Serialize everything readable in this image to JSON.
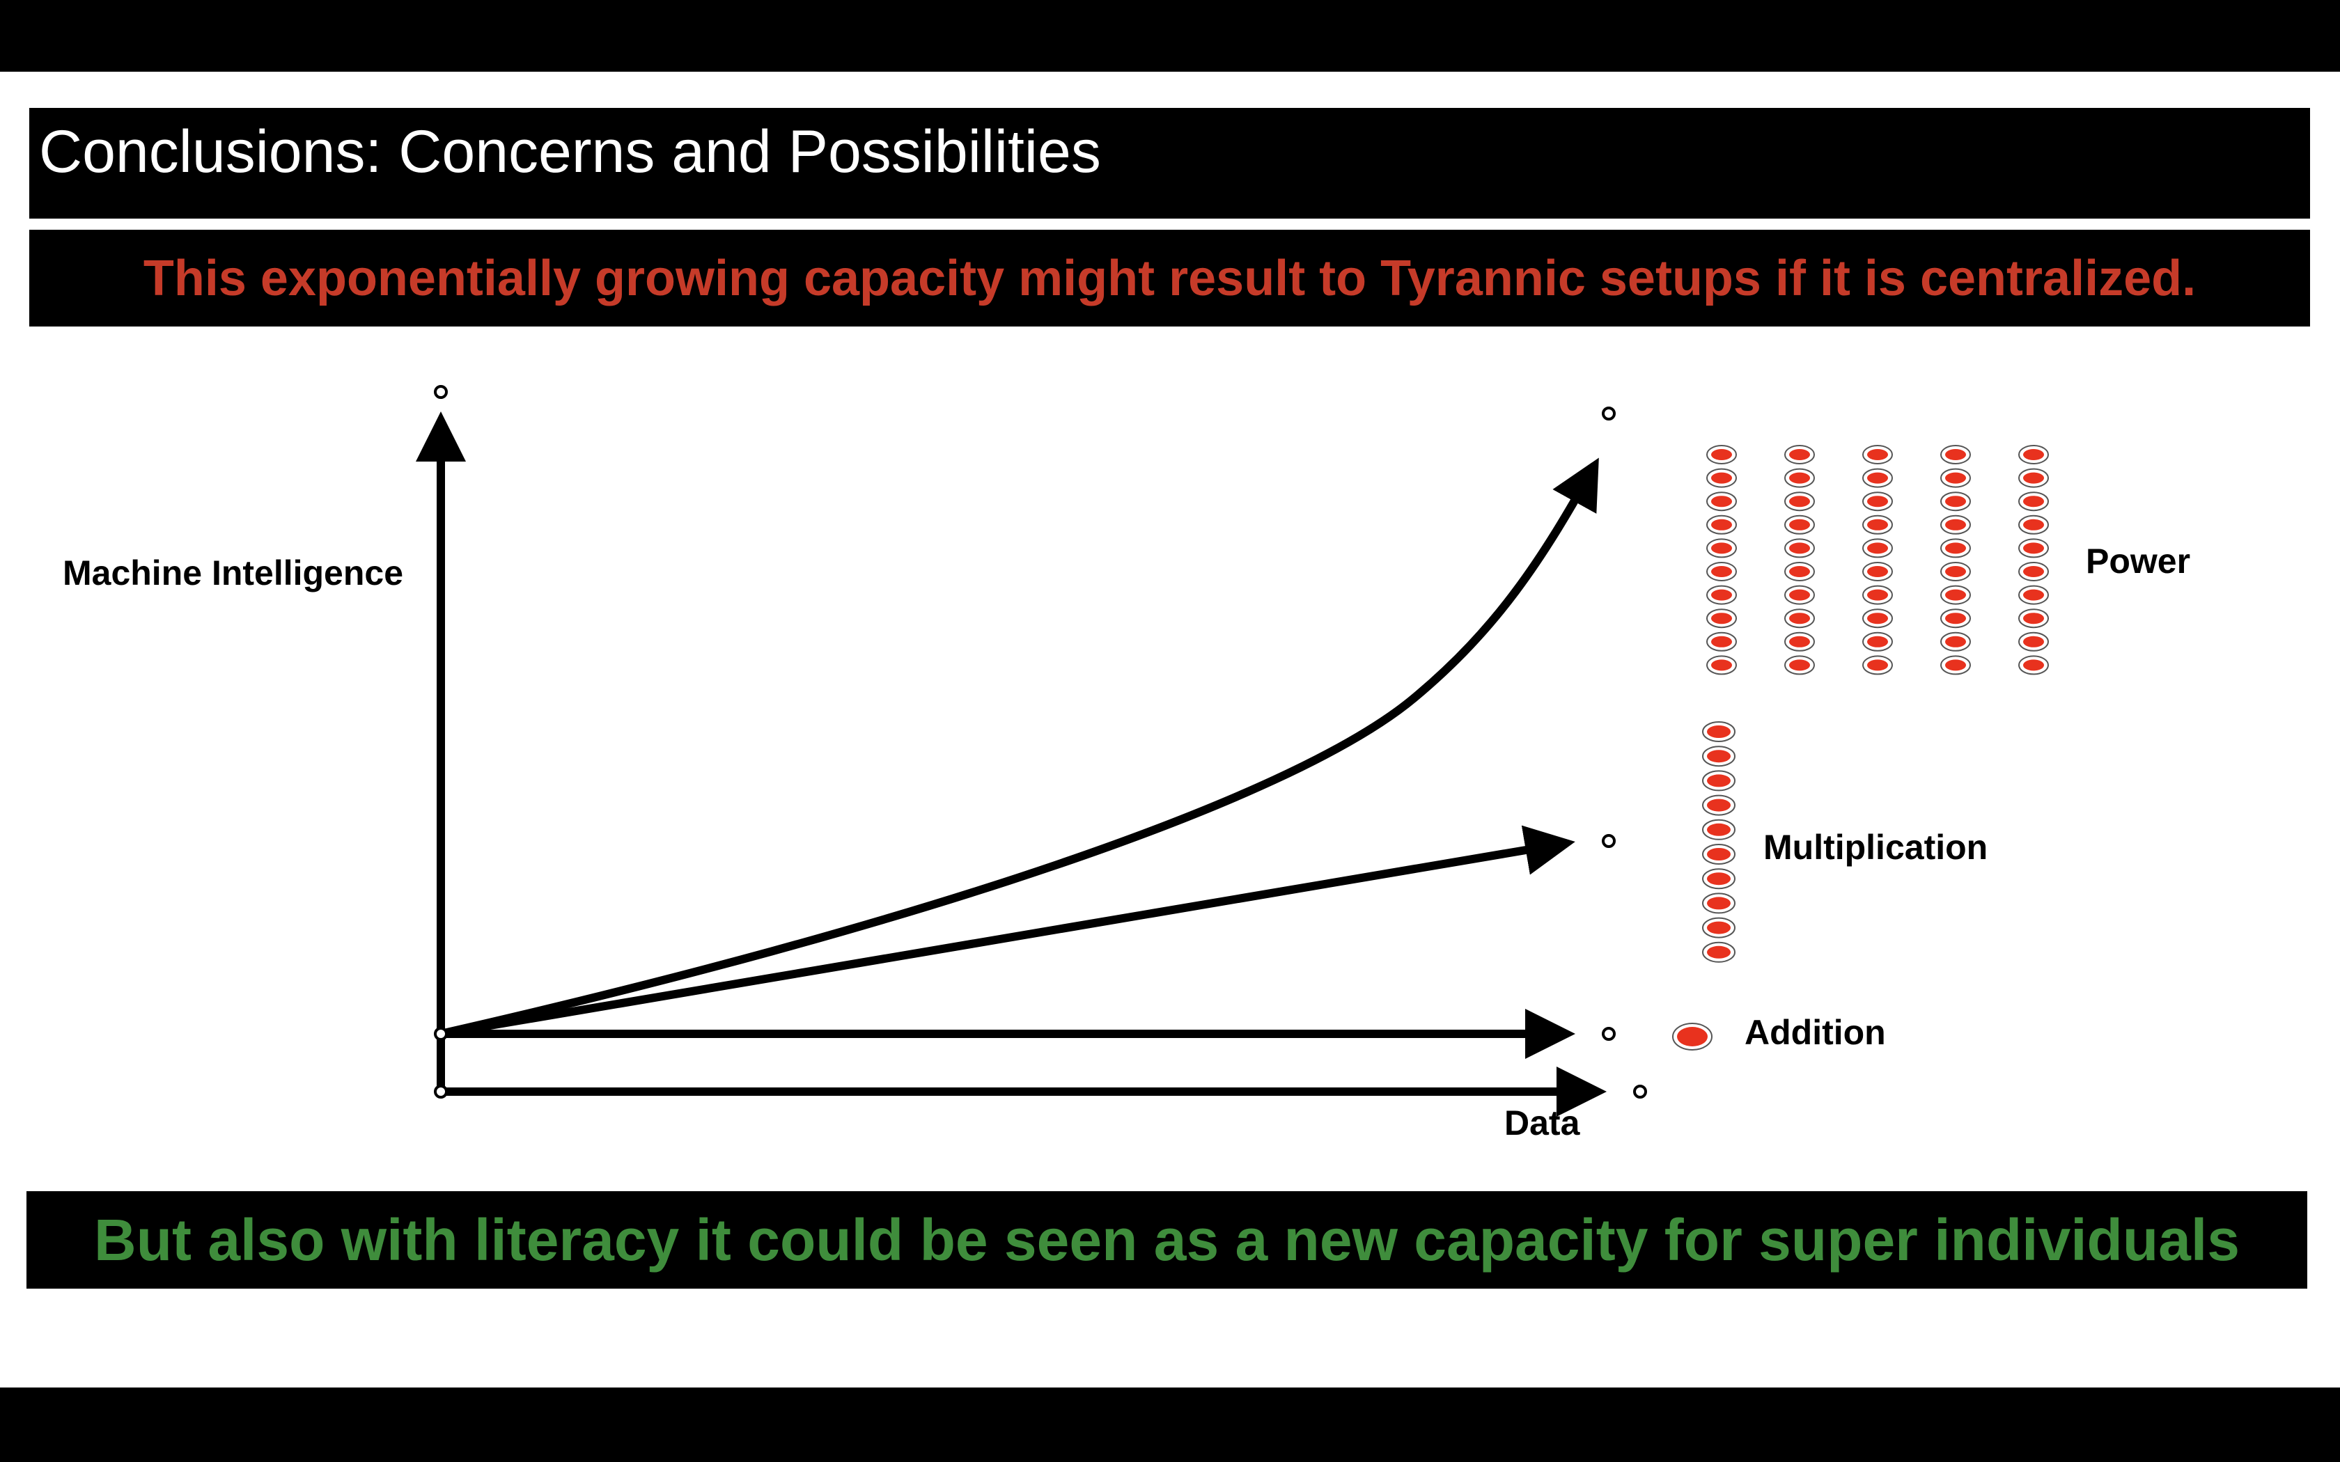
{
  "slide": {
    "title": "Conclusions: Concerns and Possibilities",
    "concern_banner": "This exponentially growing capacity might result to Tyrannic setups if it is centralized.",
    "possibility_banner": "But also with literacy it could be seen as a new capacity for super individuals"
  },
  "diagram": {
    "y_axis_label": "Machine Intelligence",
    "x_axis_label": "Data",
    "tiers": [
      {
        "label": "Power",
        "dot_grid": {
          "columns": 5,
          "rows": 10
        }
      },
      {
        "label": "Multiplication",
        "dot_grid": {
          "columns": 1,
          "rows": 10
        }
      },
      {
        "label": "Addition",
        "dot_grid": {
          "columns": 1,
          "rows": 1
        }
      }
    ]
  },
  "colors": {
    "concern_text": "#c63b29",
    "possibility_text": "#3f8d3c",
    "dot_fill": "#e8321e",
    "banner_background": "#000000",
    "title_text": "#ffffff"
  }
}
